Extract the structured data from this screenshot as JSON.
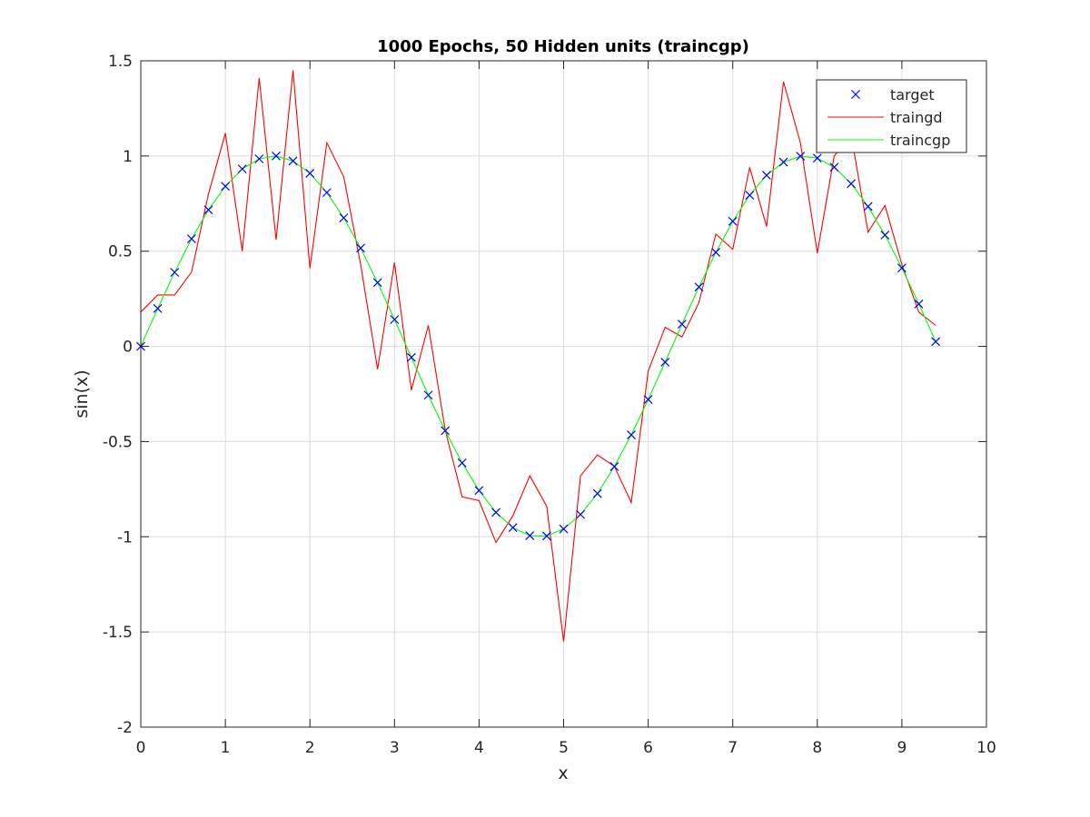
{
  "chart_data": {
    "type": "line",
    "title": "1000 Epochs, 50 Hidden units (traincgp)",
    "xlabel": "x",
    "ylabel": "sin(x)",
    "xlim": [
      0,
      10
    ],
    "ylim": [
      -2,
      1.5
    ],
    "xticks": [
      0,
      1,
      2,
      3,
      4,
      5,
      6,
      7,
      8,
      9,
      10
    ],
    "yticks": [
      1.5,
      1,
      0.5,
      0,
      -0.5,
      -1,
      -1.5,
      -2
    ],
    "xtick_labels": [
      "0",
      "1",
      "2",
      "3",
      "4",
      "5",
      "6",
      "7",
      "8",
      "9",
      "10"
    ],
    "ytick_labels": [
      "1.5",
      "1",
      "0.5",
      "0",
      "-0.5",
      "-1",
      "-1.5",
      "-2"
    ],
    "grid": true,
    "legend_position": "top-right",
    "x": [
      0,
      0.2,
      0.4,
      0.6,
      0.8,
      1.0,
      1.2,
      1.4,
      1.6,
      1.8,
      2.0,
      2.2,
      2.4,
      2.6,
      2.8,
      3.0,
      3.2,
      3.4,
      3.6,
      3.8,
      4.0,
      4.2,
      4.4,
      4.6,
      4.8,
      5.0,
      5.2,
      5.4,
      5.6,
      5.8,
      6.0,
      6.2,
      6.4,
      6.6,
      6.8,
      7.0,
      7.2,
      7.4,
      7.6,
      7.8,
      8.0,
      8.2,
      8.4,
      8.6,
      8.8,
      9.0,
      9.2,
      9.4
    ],
    "series": [
      {
        "name": "target",
        "style": "marker",
        "marker": "x",
        "color": "#0000ff",
        "values": [
          0.0,
          0.199,
          0.389,
          0.565,
          0.717,
          0.841,
          0.932,
          0.985,
          1.0,
          0.974,
          0.909,
          0.808,
          0.675,
          0.516,
          0.335,
          0.141,
          -0.058,
          -0.256,
          -0.443,
          -0.612,
          -0.757,
          -0.872,
          -0.952,
          -0.994,
          -0.996,
          -0.959,
          -0.883,
          -0.773,
          -0.631,
          -0.465,
          -0.279,
          -0.083,
          0.117,
          0.312,
          0.494,
          0.657,
          0.794,
          0.899,
          0.968,
          0.999,
          0.989,
          0.941,
          0.855,
          0.735,
          0.585,
          0.412,
          0.223,
          0.025
        ]
      },
      {
        "name": "traingd",
        "style": "line",
        "color": "#ff0000",
        "values": [
          0.18,
          0.27,
          0.27,
          0.39,
          0.8,
          1.12,
          0.5,
          1.41,
          0.56,
          1.45,
          0.41,
          1.07,
          0.89,
          0.43,
          -0.12,
          0.44,
          -0.23,
          0.11,
          -0.44,
          -0.79,
          -0.81,
          -1.03,
          -0.89,
          -0.68,
          -0.84,
          -1.55,
          -0.68,
          -0.57,
          -0.63,
          -0.82,
          -0.13,
          0.1,
          0.05,
          0.23,
          0.59,
          0.51,
          0.94,
          0.63,
          1.39,
          1.07,
          0.49,
          1.0,
          1.11,
          0.6,
          0.74,
          0.43,
          0.18,
          0.11
        ]
      },
      {
        "name": "traincgp",
        "style": "line",
        "color": "#00ff00",
        "values": [
          0.0,
          0.199,
          0.389,
          0.565,
          0.717,
          0.841,
          0.932,
          0.985,
          1.0,
          0.974,
          0.909,
          0.808,
          0.675,
          0.516,
          0.335,
          0.141,
          -0.058,
          -0.256,
          -0.443,
          -0.612,
          -0.757,
          -0.872,
          -0.952,
          -0.994,
          -0.996,
          -0.959,
          -0.883,
          -0.773,
          -0.631,
          -0.465,
          -0.279,
          -0.083,
          0.117,
          0.312,
          0.494,
          0.657,
          0.794,
          0.899,
          0.968,
          0.999,
          0.989,
          0.941,
          0.855,
          0.735,
          0.585,
          0.412,
          0.223,
          0.025
        ]
      }
    ]
  }
}
